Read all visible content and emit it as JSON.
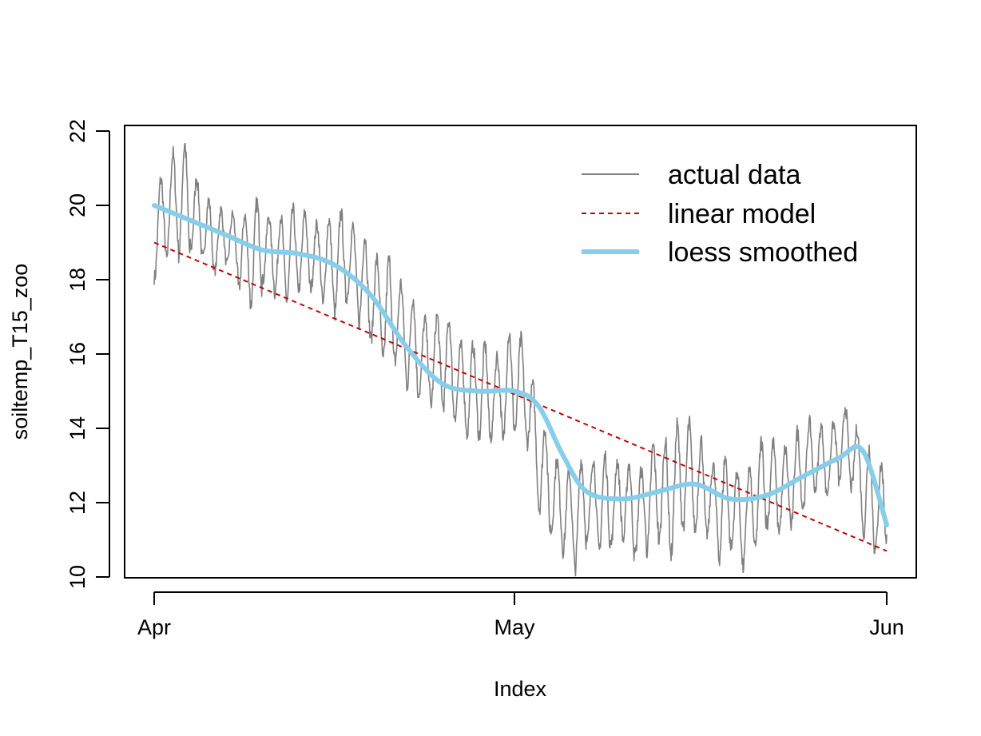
{
  "chart_data": {
    "type": "line",
    "xlabel": "Index",
    "ylabel": "soiltemp_T15_zoo",
    "x_ticks": [
      {
        "label": "Apr",
        "date": "2021-04-01"
      },
      {
        "label": "May",
        "date": "2021-05-01"
      },
      {
        "label": "Jun",
        "date": "2021-06-01"
      }
    ],
    "y_ticks": [
      10,
      12,
      14,
      16,
      18,
      20,
      22
    ],
    "ylim": [
      10,
      22
    ],
    "xlim": [
      "2021-04-01",
      "2021-06-01"
    ],
    "grid": false,
    "legend_position": "top-right",
    "series": [
      {
        "name": "actual data",
        "color": "#808080",
        "style": "solid-thin",
        "x": [
          "2021-04-01",
          "2021-04-02",
          "2021-04-03",
          "2021-04-04",
          "2021-04-05",
          "2021-04-06",
          "2021-04-07",
          "2021-04-08",
          "2021-04-09",
          "2021-04-10",
          "2021-04-11",
          "2021-04-12",
          "2021-04-13",
          "2021-04-14",
          "2021-04-15",
          "2021-04-16",
          "2021-04-17",
          "2021-04-18",
          "2021-04-19",
          "2021-04-20",
          "2021-04-21",
          "2021-04-22",
          "2021-04-23",
          "2021-04-24",
          "2021-04-25",
          "2021-04-26",
          "2021-04-27",
          "2021-04-28",
          "2021-04-29",
          "2021-04-30",
          "2021-05-01",
          "2021-05-02",
          "2021-05-03",
          "2021-05-04",
          "2021-05-05",
          "2021-05-06",
          "2021-05-07",
          "2021-05-08",
          "2021-05-09",
          "2021-05-10",
          "2021-05-11",
          "2021-05-12",
          "2021-05-13",
          "2021-05-14",
          "2021-05-15",
          "2021-05-16",
          "2021-05-17",
          "2021-05-18",
          "2021-05-19",
          "2021-05-20",
          "2021-05-21",
          "2021-05-22",
          "2021-05-23",
          "2021-05-24",
          "2021-05-25",
          "2021-05-26",
          "2021-05-27",
          "2021-05-28",
          "2021-05-29",
          "2021-05-30",
          "2021-05-31",
          "2021-06-01"
        ],
        "daily_mean": [
          19.2,
          19.8,
          20.3,
          19.9,
          19.5,
          19.0,
          19.2,
          18.8,
          18.6,
          18.9,
          18.7,
          18.6,
          18.8,
          18.7,
          18.5,
          18.4,
          18.6,
          18.2,
          17.6,
          17.2,
          17.0,
          16.5,
          16.0,
          15.8,
          15.9,
          15.4,
          15.0,
          15.1,
          14.8,
          15.0,
          15.3,
          14.9,
          13.2,
          12.3,
          11.9,
          11.5,
          12.1,
          12.0,
          11.9,
          12.2,
          11.6,
          12.0,
          12.4,
          12.1,
          12.8,
          12.6,
          12.2,
          11.8,
          12.0,
          11.4,
          12.0,
          12.6,
          12.3,
          12.5,
          12.9,
          13.3,
          13.0,
          13.6,
          13.5,
          12.5,
          11.9,
          11.8
        ],
        "daily_amplitude": [
          0.9,
          1.0,
          1.2,
          0.8,
          0.7,
          0.6,
          0.6,
          0.8,
          1.0,
          0.7,
          0.8,
          0.9,
          0.8,
          0.7,
          0.9,
          1.0,
          0.8,
          1.0,
          0.9,
          1.1,
          0.9,
          1.0,
          0.8,
          0.9,
          1.0,
          0.8,
          0.9,
          1.0,
          0.8,
          1.1,
          1.0,
          0.9,
          1.0,
          0.8,
          0.9,
          1.0,
          0.9,
          1.0,
          0.8,
          0.9,
          0.8,
          1.0,
          1.1,
          1.2,
          1.1,
          1.0,
          0.8,
          1.0,
          0.9,
          0.9,
          1.0,
          0.9,
          0.8,
          0.9,
          0.8,
          0.7,
          0.6,
          0.8,
          0.8,
          1.0,
          0.9,
          0.6
        ]
      },
      {
        "name": "linear model",
        "color": "#cc0000",
        "style": "dashed",
        "x": [
          "2021-04-01",
          "2021-06-01"
        ],
        "y": [
          19.0,
          10.7
        ]
      },
      {
        "name": "loess smoothed",
        "color": "#87ceeb",
        "style": "solid-thick",
        "x": [
          "2021-04-01",
          "2021-04-04",
          "2021-04-07",
          "2021-04-10",
          "2021-04-13",
          "2021-04-16",
          "2021-04-19",
          "2021-04-22",
          "2021-04-25",
          "2021-04-28",
          "2021-05-01",
          "2021-05-03",
          "2021-05-05",
          "2021-05-07",
          "2021-05-10",
          "2021-05-13",
          "2021-05-16",
          "2021-05-19",
          "2021-05-22",
          "2021-05-25",
          "2021-05-28",
          "2021-05-30",
          "2021-06-01"
        ],
        "y": [
          20.0,
          19.6,
          19.2,
          18.8,
          18.7,
          18.4,
          17.6,
          16.2,
          15.2,
          15.0,
          15.0,
          14.6,
          13.3,
          12.3,
          12.1,
          12.3,
          12.5,
          12.1,
          12.2,
          12.7,
          13.2,
          13.4,
          11.4
        ]
      }
    ]
  }
}
